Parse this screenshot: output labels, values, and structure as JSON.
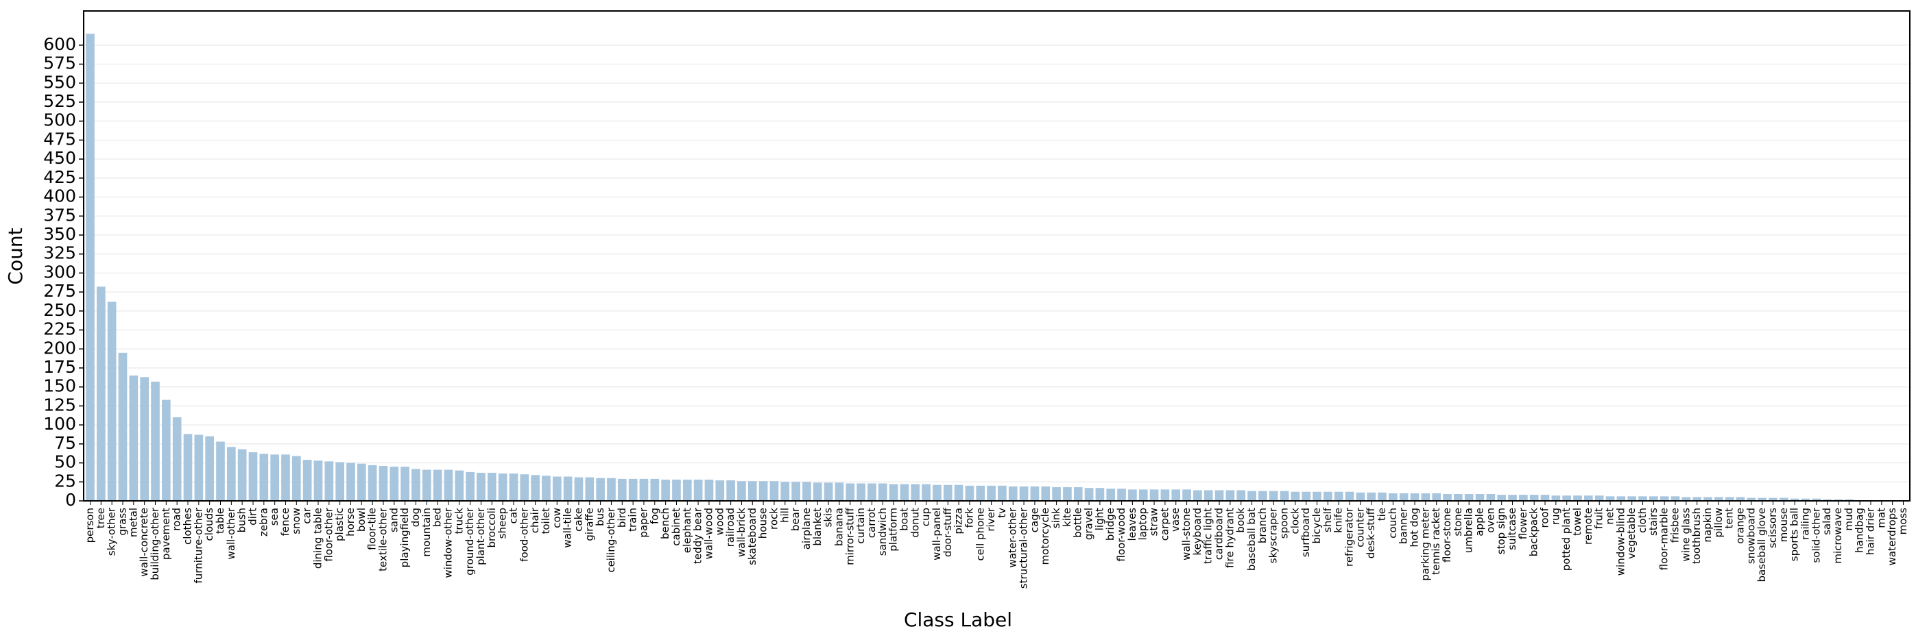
{
  "chart_data": {
    "type": "bar",
    "xlabel": "Class Label",
    "ylabel": "Count",
    "color": "#a8c5de",
    "grid": true,
    "categories": [
      "person",
      "tree",
      "sky-other",
      "grass",
      "metal",
      "wall-concrete",
      "building-other",
      "pavement",
      "road",
      "clothes",
      "furniture-other",
      "clouds",
      "table",
      "wall-other",
      "bush",
      "dirt",
      "zebra",
      "sea",
      "fence",
      "snow",
      "car",
      "dining table",
      "floor-other",
      "plastic",
      "horse",
      "bowl",
      "floor-tile",
      "textile-other",
      "sand",
      "playingfield",
      "dog",
      "mountain",
      "bed",
      "window-other",
      "truck",
      "ground-other",
      "plant-other",
      "broccoli",
      "sheep",
      "cat",
      "food-other",
      "chair",
      "toilet",
      "cow",
      "wall-tile",
      "cake",
      "giraffe",
      "bus",
      "ceiling-other",
      "bird",
      "train",
      "paper",
      "fog",
      "bench",
      "cabinet",
      "elephant",
      "teddy bear",
      "wall-wood",
      "wood",
      "railroad",
      "wall-brick",
      "skateboard",
      "house",
      "rock",
      "hill",
      "bear",
      "airplane",
      "blanket",
      "skis",
      "banana",
      "mirror-stuff",
      "curtain",
      "carrot",
      "sandwich",
      "platform",
      "boat",
      "donut",
      "cup",
      "wall-panel",
      "door-stuff",
      "pizza",
      "fork",
      "cell phone",
      "river",
      "tv",
      "water-other",
      "structural-other",
      "cage",
      "motorcycle",
      "sink",
      "kite",
      "bottle",
      "gravel",
      "light",
      "bridge",
      "floor-wood",
      "leaves",
      "laptop",
      "straw",
      "carpet",
      "vase",
      "wall-stone",
      "keyboard",
      "traffic light",
      "cardboard",
      "fire hydrant",
      "book",
      "baseball bat",
      "branch",
      "skyscraper",
      "spoon",
      "clock",
      "surfboard",
      "bicycle",
      "shelf",
      "knife",
      "refrigerator",
      "counter",
      "desk-stuff",
      "tie",
      "couch",
      "banner",
      "hot dog",
      "parking meter",
      "tennis racket",
      "floor-stone",
      "stone",
      "umbrella",
      "apple",
      "oven",
      "stop sign",
      "suitcase",
      "flower",
      "backpack",
      "roof",
      "rug",
      "potted plant",
      "towel",
      "remote",
      "fruit",
      "net",
      "window-blind",
      "vegetable",
      "cloth",
      "stairs",
      "floor-marble",
      "frisbee",
      "wine glass",
      "toothbrush",
      "napkin",
      "pillow",
      "tent",
      "orange",
      "snowboard",
      "baseball glove",
      "scissors",
      "mouse",
      "sports ball",
      "railing",
      "solid-other",
      "salad",
      "microwave",
      "mud",
      "handbag",
      "hair drier",
      "mat",
      "waterdrops",
      "moss"
    ],
    "values": [
      615,
      282,
      262,
      195,
      165,
      163,
      157,
      133,
      110,
      88,
      87,
      85,
      78,
      71,
      68,
      64,
      62,
      61,
      61,
      59,
      54,
      53,
      52,
      51,
      50,
      49,
      47,
      46,
      45,
      45,
      42,
      41,
      41,
      41,
      40,
      38,
      37,
      37,
      36,
      36,
      35,
      34,
      33,
      32,
      32,
      31,
      31,
      30,
      30,
      29,
      29,
      29,
      29,
      28,
      28,
      28,
      28,
      28,
      27,
      27,
      26,
      26,
      26,
      26,
      25,
      25,
      25,
      24,
      24,
      24,
      23,
      23,
      23,
      23,
      22,
      22,
      22,
      22,
      21,
      21,
      21,
      20,
      20,
      20,
      20,
      19,
      19,
      19,
      19,
      18,
      18,
      18,
      17,
      17,
      16,
      16,
      15,
      15,
      15,
      15,
      15,
      15,
      14,
      14,
      14,
      14,
      14,
      13,
      13,
      13,
      13,
      12,
      12,
      12,
      12,
      12,
      12,
      11,
      11,
      11,
      10,
      10,
      10,
      10,
      10,
      9,
      9,
      9,
      9,
      9,
      8,
      8,
      8,
      8,
      8,
      7,
      7,
      7,
      7,
      7,
      6,
      6,
      6,
      6,
      6,
      6,
      6,
      5,
      5,
      5,
      5,
      5,
      5,
      4,
      4,
      4,
      4,
      3,
      3,
      3,
      2,
      2,
      2,
      1,
      1,
      1,
      1,
      1
    ],
    "ylim": [
      0,
      645
    ],
    "yticks": [
      0,
      25,
      50,
      75,
      100,
      125,
      150,
      175,
      200,
      225,
      250,
      275,
      300,
      325,
      350,
      375,
      400,
      425,
      450,
      475,
      500,
      525,
      550,
      575,
      600
    ]
  }
}
